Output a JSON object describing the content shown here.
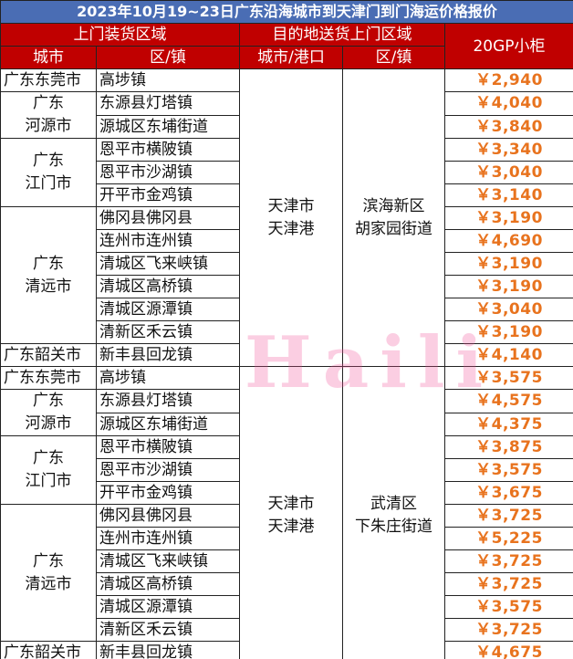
{
  "title": "2023年10月19~23日广东沿海城市到天津门到门海运价格报价",
  "header": {
    "pickup": "上门装货区域",
    "destination": "目的地送货上门区域",
    "price": "20GP小柜",
    "city": "城市",
    "district": "区/镇",
    "dest_city": "城市/港口",
    "dest_district": "区/镇"
  },
  "sections": [
    {
      "dest_city": [
        "天津市",
        "天津港"
      ],
      "dest_district": [
        "滨海新区",
        "胡家园街道"
      ],
      "groups": [
        {
          "city": [
            "广东东莞市"
          ],
          "rows": [
            {
              "district": "高埗镇",
              "price": "￥2,940"
            }
          ]
        },
        {
          "city": [
            "广东",
            "河源市"
          ],
          "rows": [
            {
              "district": "东源县灯塔镇",
              "price": "￥4,040"
            },
            {
              "district": "源城区东埔街道",
              "price": "￥3,840"
            }
          ]
        },
        {
          "city": [
            "广东",
            "江门市"
          ],
          "rows": [
            {
              "district": "恩平市横陂镇",
              "price": "￥3,340"
            },
            {
              "district": "恩平市沙湖镇",
              "price": "￥3,040"
            },
            {
              "district": "开平市金鸡镇",
              "price": "￥3,140"
            }
          ]
        },
        {
          "city": [
            "广东",
            "清远市"
          ],
          "rows": [
            {
              "district": "佛冈县佛冈县",
              "price": "￥3,190"
            },
            {
              "district": "连州市连州镇",
              "price": "￥4,690"
            },
            {
              "district": "清城区飞来峡镇",
              "price": "￥3,190"
            },
            {
              "district": "清城区高桥镇",
              "price": "￥3,190"
            },
            {
              "district": "清城区源潭镇",
              "price": "￥3,040"
            },
            {
              "district": "清新区禾云镇",
              "price": "￥3,190"
            }
          ]
        },
        {
          "city": [
            "广东韶关市"
          ],
          "rows": [
            {
              "district": "新丰县回龙镇",
              "price": "￥4,140"
            }
          ]
        }
      ]
    },
    {
      "dest_city": [
        "天津市",
        "天津港"
      ],
      "dest_district": [
        "武清区",
        "下朱庄街道"
      ],
      "groups": [
        {
          "city": [
            "广东东莞市"
          ],
          "rows": [
            {
              "district": "高埗镇",
              "price": "￥3,575"
            }
          ]
        },
        {
          "city": [
            "广东",
            "河源市"
          ],
          "rows": [
            {
              "district": "东源县灯塔镇",
              "price": "￥4,575"
            },
            {
              "district": "源城区东埔街道",
              "price": "￥4,375"
            }
          ]
        },
        {
          "city": [
            "广东",
            "江门市"
          ],
          "rows": [
            {
              "district": "恩平市横陂镇",
              "price": "￥3,875"
            },
            {
              "district": "恩平市沙湖镇",
              "price": "￥3,575"
            },
            {
              "district": "开平市金鸡镇",
              "price": "￥3,675"
            }
          ]
        },
        {
          "city": [
            "广东",
            "清远市"
          ],
          "rows": [
            {
              "district": "佛冈县佛冈县",
              "price": "￥3,725"
            },
            {
              "district": "连州市连州镇",
              "price": "￥5,225"
            },
            {
              "district": "清城区飞来峡镇",
              "price": "￥3,725"
            },
            {
              "district": "清城区高桥镇",
              "price": "￥3,725"
            },
            {
              "district": "清城区源潭镇",
              "price": "￥3,575"
            },
            {
              "district": "清新区禾云镇",
              "price": "￥3,725"
            }
          ]
        },
        {
          "city": [
            "广东韶关市"
          ],
          "rows": [
            {
              "district": "新丰县回龙镇",
              "price": "￥4,675"
            }
          ]
        }
      ]
    }
  ],
  "watermark": "Haili"
}
